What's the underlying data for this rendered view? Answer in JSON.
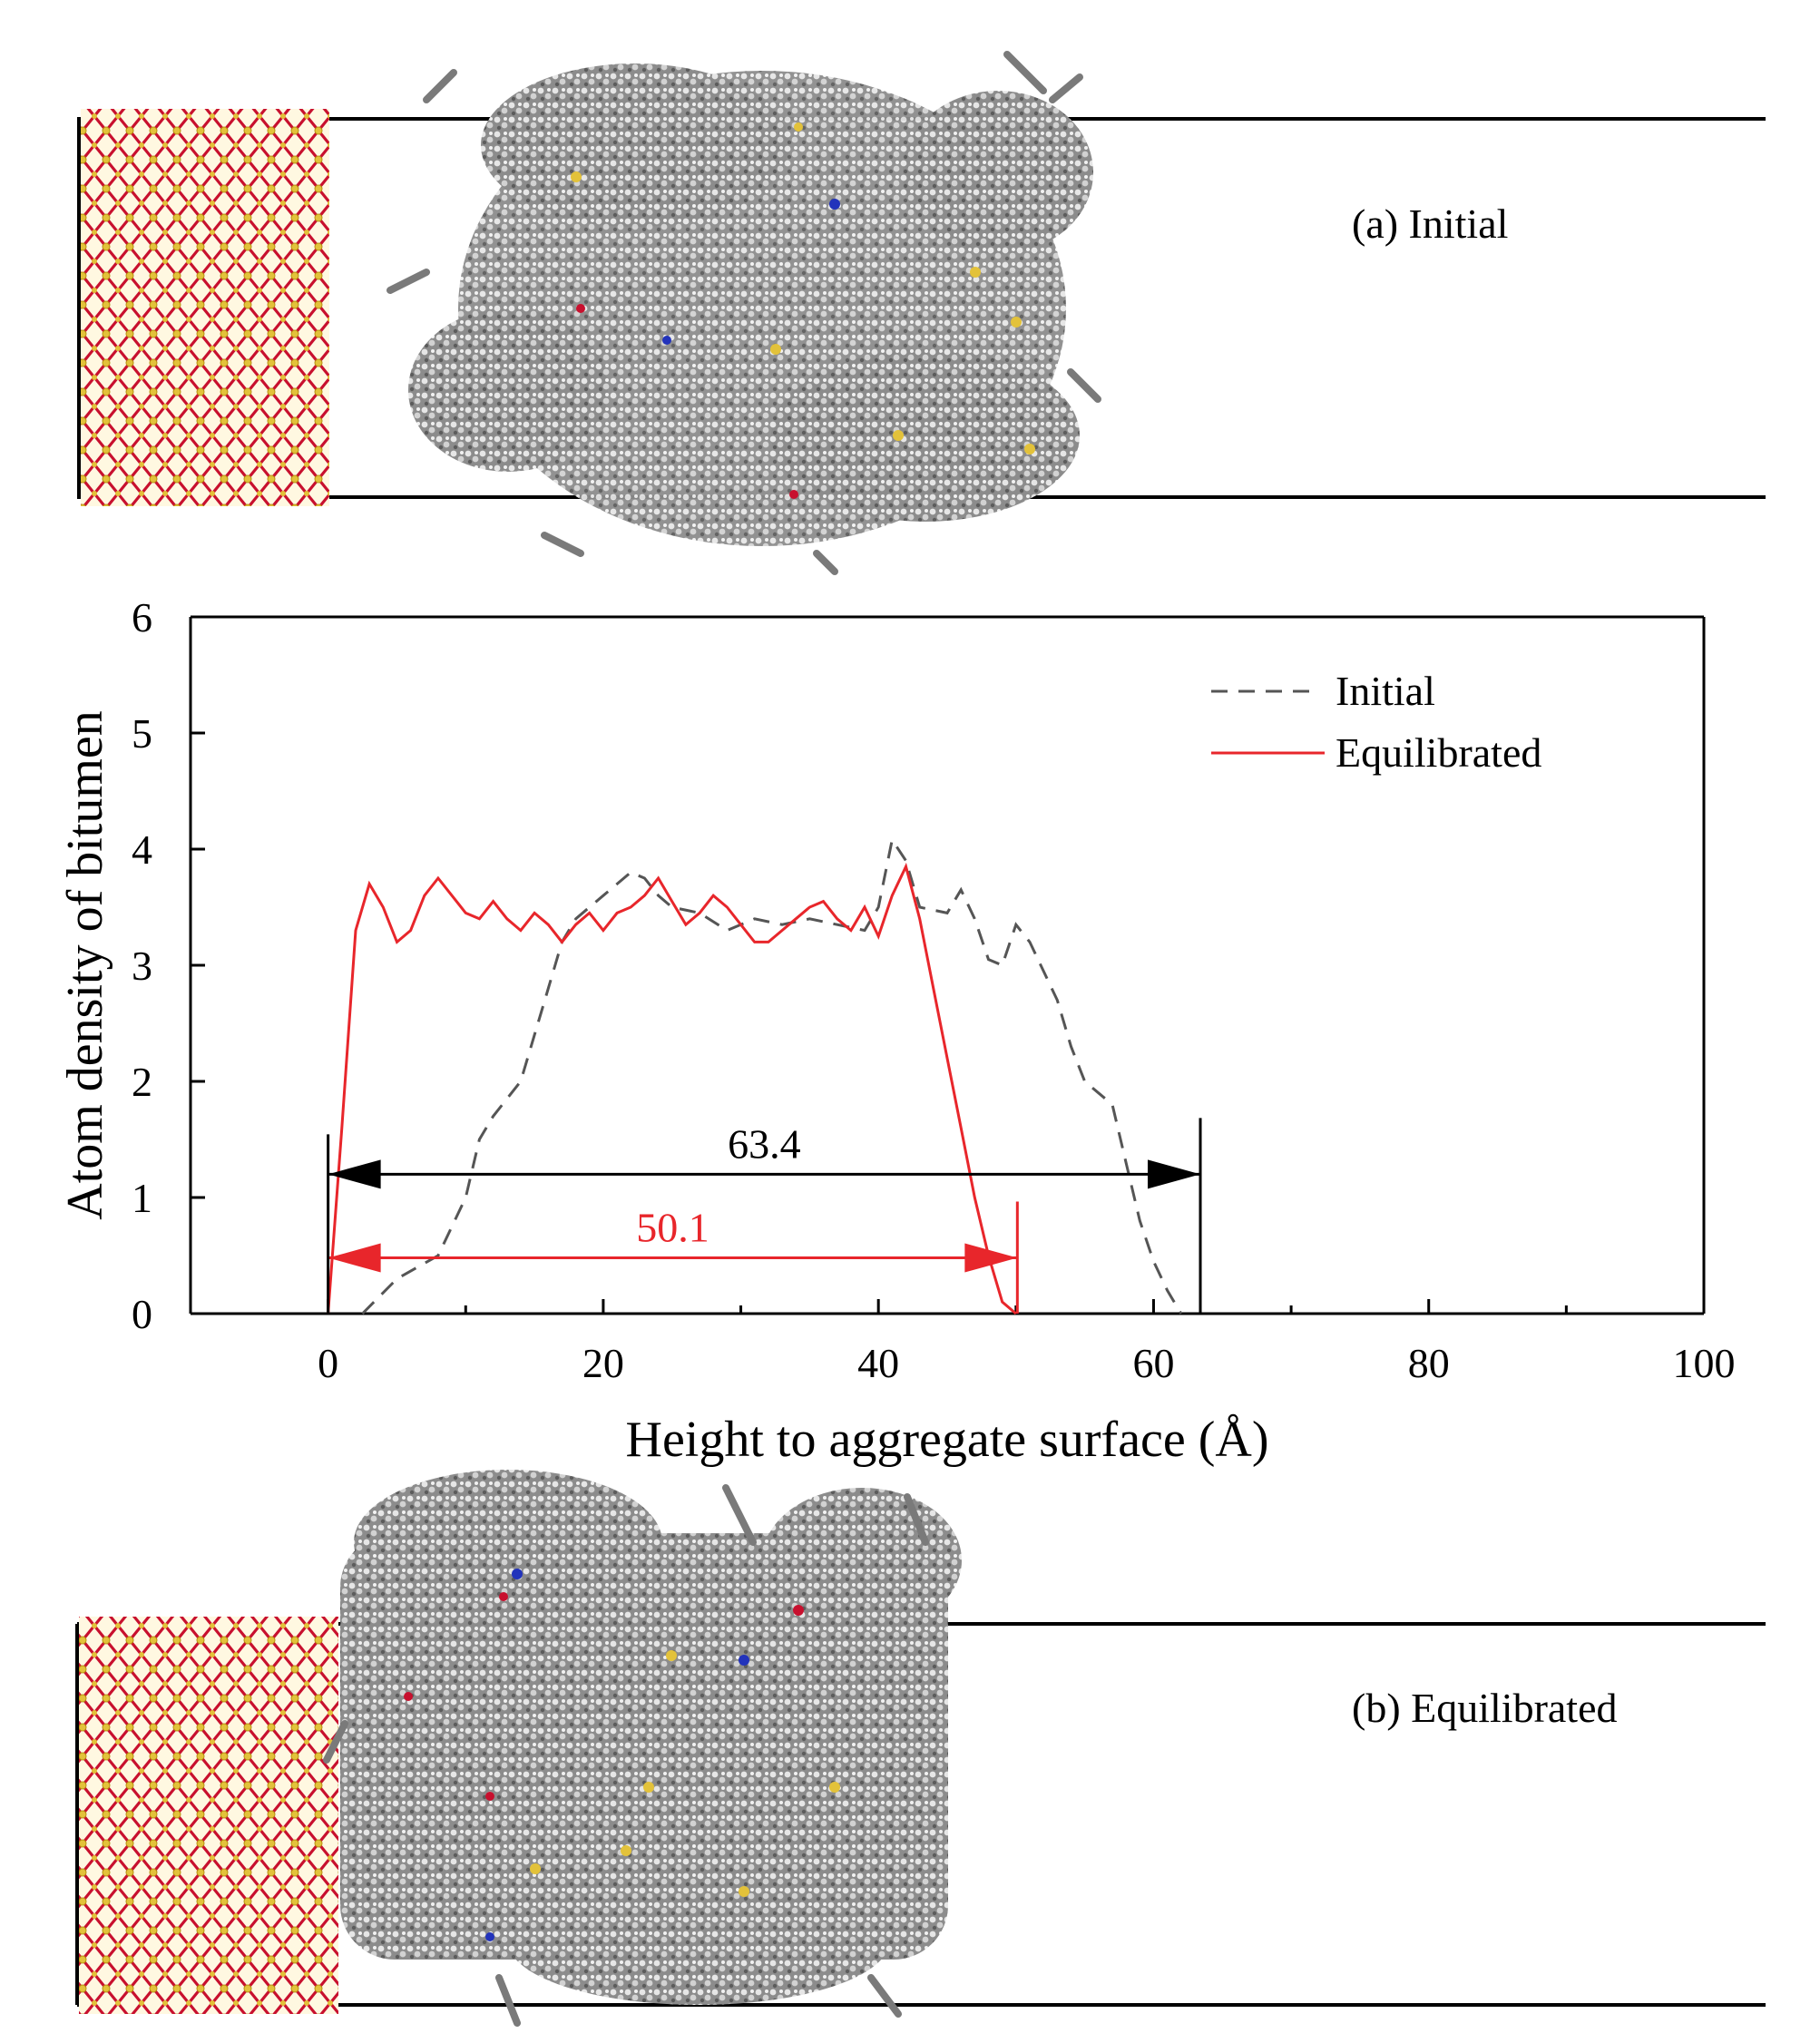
{
  "panels": {
    "initial_label": "(a) Initial",
    "equilibrated_label": "(b) Equilibrated"
  },
  "colors": {
    "initial_series": "#555555",
    "equilibrated_series": "#e8262b",
    "total_span_arrow": "#000000",
    "equilibrated_span_arrow": "#e8262b",
    "aggregate_oxygen": "#c8102e",
    "aggregate_silicon": "#e3c23a",
    "bitumen_atoms": "#7a7a7a"
  },
  "chart_data": {
    "type": "line",
    "xlabel": "Height to aggregate surface (Å)",
    "ylabel": "Atom density of bitumen",
    "xlim": [
      -10,
      100
    ],
    "ylim": [
      0,
      6
    ],
    "xticks": [
      0,
      20,
      40,
      60,
      80,
      100
    ],
    "yticks": [
      0,
      1,
      2,
      3,
      4,
      5,
      6
    ],
    "legend_position": "top-right",
    "grid": false,
    "series": [
      {
        "name": "Initial",
        "style": "dashed",
        "x": [
          2.5,
          5,
          8,
          10,
          11,
          12,
          14,
          16,
          17,
          18,
          19,
          20,
          21,
          22,
          23,
          24,
          25,
          27,
          29,
          31,
          33,
          35,
          37,
          39,
          40,
          41,
          42,
          43,
          45,
          46,
          47,
          48,
          49,
          50,
          51,
          53,
          54,
          55,
          56,
          57,
          58,
          59,
          60,
          61,
          62
        ],
        "y": [
          0,
          0.3,
          0.5,
          1.0,
          1.5,
          1.7,
          2.0,
          2.8,
          3.2,
          3.4,
          3.5,
          3.6,
          3.7,
          3.8,
          3.75,
          3.6,
          3.5,
          3.45,
          3.3,
          3.4,
          3.35,
          3.4,
          3.35,
          3.3,
          3.5,
          4.08,
          3.9,
          3.5,
          3.45,
          3.65,
          3.4,
          3.05,
          3.0,
          3.35,
          3.2,
          2.7,
          2.3,
          2.0,
          1.9,
          1.8,
          1.3,
          0.8,
          0.45,
          0.2,
          0
        ]
      },
      {
        "name": "Equilibrated",
        "style": "solid",
        "x": [
          0,
          1,
          2,
          3,
          4,
          5,
          6,
          7,
          8,
          9,
          10,
          11,
          12,
          13,
          14,
          15,
          16,
          17,
          18,
          19,
          20,
          21,
          22,
          23,
          24,
          25,
          26,
          27,
          28,
          29,
          30,
          31,
          32,
          33,
          34,
          35,
          36,
          37,
          38,
          39,
          40,
          41,
          42,
          43,
          44,
          45,
          46,
          47,
          48,
          49,
          50
        ],
        "y": [
          0,
          1.6,
          3.3,
          3.7,
          3.5,
          3.2,
          3.3,
          3.6,
          3.75,
          3.6,
          3.45,
          3.4,
          3.55,
          3.4,
          3.3,
          3.45,
          3.35,
          3.2,
          3.35,
          3.45,
          3.3,
          3.45,
          3.5,
          3.6,
          3.75,
          3.55,
          3.35,
          3.45,
          3.6,
          3.5,
          3.35,
          3.2,
          3.2,
          3.3,
          3.4,
          3.5,
          3.55,
          3.4,
          3.3,
          3.5,
          3.25,
          3.6,
          3.85,
          3.4,
          2.8,
          2.2,
          1.6,
          1.0,
          0.5,
          0.1,
          0
        ]
      }
    ],
    "annotations": [
      {
        "label": "63.4",
        "from_x": 0,
        "to_x": 63.4,
        "y": 1.2,
        "color": "#000000"
      },
      {
        "label": "50.1",
        "from_x": 0,
        "to_x": 50.1,
        "y": 0.48,
        "color": "#e8262b"
      }
    ]
  }
}
